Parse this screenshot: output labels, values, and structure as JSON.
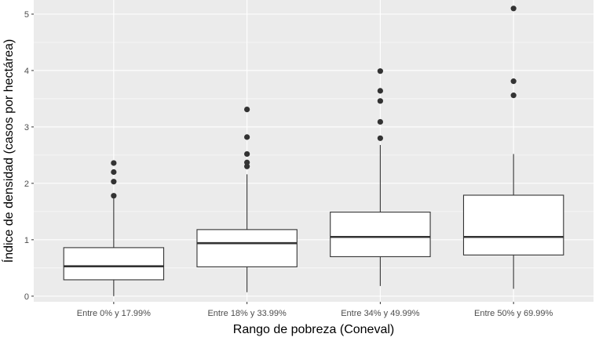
{
  "chart_data": {
    "type": "boxplot",
    "xlabel": "Rango de pobreza (Coneval)",
    "ylabel": "Índice de densidad (casos por hectárea)",
    "ylim": [
      -0.1,
      5.25
    ],
    "yticks": [
      0,
      1,
      2,
      3,
      4,
      5
    ],
    "grid": true,
    "categories": [
      "Entre 0% y 17.99%",
      "Entre 18% y 33.99%",
      "Entre 34% y 49.99%",
      "Entre 50% y 69.99%"
    ],
    "boxes": [
      {
        "category": "Entre 0% y 17.99%",
        "whisker_low": 0.0,
        "q1": 0.29,
        "median": 0.53,
        "q3": 0.86,
        "whisker_high": 1.75,
        "outliers": [
          1.78,
          2.03,
          2.2,
          2.36
        ]
      },
      {
        "category": "Entre 18% y 33.99%",
        "whisker_low": 0.07,
        "q1": 0.52,
        "median": 0.94,
        "q3": 1.18,
        "whisker_high": 2.16,
        "outliers": [
          2.3,
          2.37,
          2.52,
          2.82,
          3.31
        ]
      },
      {
        "category": "Entre 34% y 49.99%",
        "whisker_low": 0.18,
        "q1": 0.7,
        "median": 1.05,
        "q3": 1.49,
        "whisker_high": 2.68,
        "outliers": [
          2.8,
          3.09,
          3.46,
          3.64,
          3.99
        ]
      },
      {
        "category": "Entre 50% y 69.99%",
        "whisker_low": 0.13,
        "q1": 0.73,
        "median": 1.05,
        "q3": 1.79,
        "whisker_high": 2.52,
        "outliers": [
          3.56,
          3.81,
          5.1
        ]
      }
    ],
    "colors": {
      "panel": "#ebebeb",
      "grid": "#ffffff",
      "box_fill": "#ffffff",
      "line": "#333333",
      "point": "#333333"
    }
  }
}
